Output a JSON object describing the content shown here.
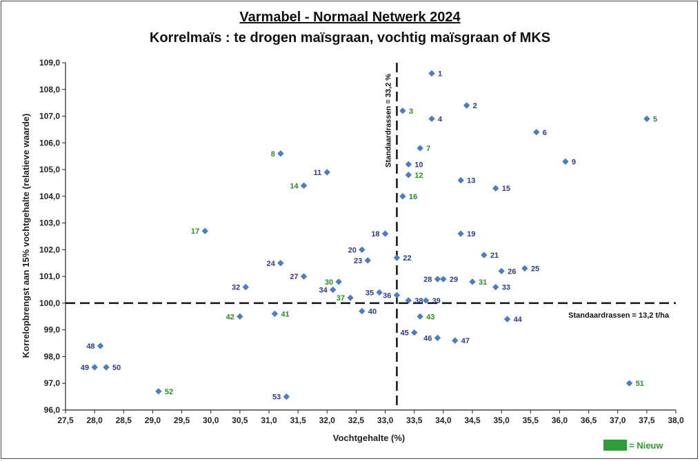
{
  "title": "Varmabel - Normaal Netwerk 2024",
  "subtitle": "Korrelmaïs : te drogen maïsgraan, vochtig maïsgraan of MKS",
  "legend": {
    "label": "= Nieuw",
    "color": "#2e9e3a"
  },
  "colors": {
    "point": "#4a7fc8",
    "label_old": "#2b3a8a",
    "label_new": "#2a8a2a"
  },
  "chart_data": {
    "type": "scatter",
    "xlabel": "Vochtgehalte (%)",
    "ylabel": "Korrelopbrengst aan 15% vochtgehalte (relatieve waarde)",
    "xlim": [
      27.5,
      38.0
    ],
    "ylim": [
      96.0,
      109.0
    ],
    "xticks": [
      "27,5",
      "28,0",
      "28,5",
      "29,0",
      "29,5",
      "30,0",
      "30,5",
      "31,0",
      "31,5",
      "32,0",
      "32,5",
      "33,0",
      "33,5",
      "34,0",
      "34,5",
      "35,0",
      "35,5",
      "36,0",
      "36,5",
      "37,0",
      "37,5",
      "38,0"
    ],
    "yticks": [
      "96,0",
      "97,0",
      "98,0",
      "99,0",
      "100,0",
      "101,0",
      "102,0",
      "103,0",
      "104,0",
      "105,0",
      "106,0",
      "107,0",
      "108,0",
      "109,0"
    ],
    "reference_lines": [
      {
        "orientation": "vertical",
        "value": 33.2,
        "label": "Standaardrassen = 33,2 %"
      },
      {
        "orientation": "horizontal",
        "value": 100.0,
        "label": "Standaardrassen = 13,2 t/ha"
      }
    ],
    "points": [
      {
        "label": "1",
        "x": 33.8,
        "y": 108.6,
        "new": false
      },
      {
        "label": "2",
        "x": 34.4,
        "y": 107.4,
        "new": false
      },
      {
        "label": "3",
        "x": 33.3,
        "y": 107.2,
        "new": true
      },
      {
        "label": "4",
        "x": 33.8,
        "y": 106.9,
        "new": false
      },
      {
        "label": "5",
        "x": 37.5,
        "y": 106.9,
        "new": true
      },
      {
        "label": "6",
        "x": 35.6,
        "y": 106.4,
        "new": false
      },
      {
        "label": "7",
        "x": 33.6,
        "y": 105.8,
        "new": true
      },
      {
        "label": "8",
        "x": 31.2,
        "y": 105.6,
        "new": true
      },
      {
        "label": "9",
        "x": 36.1,
        "y": 105.3,
        "new": false
      },
      {
        "label": "10",
        "x": 33.4,
        "y": 105.2,
        "new": false
      },
      {
        "label": "11",
        "x": 32.0,
        "y": 104.9,
        "new": false
      },
      {
        "label": "12",
        "x": 33.4,
        "y": 104.8,
        "new": true
      },
      {
        "label": "13",
        "x": 34.3,
        "y": 104.6,
        "new": false
      },
      {
        "label": "14",
        "x": 31.6,
        "y": 104.4,
        "new": true
      },
      {
        "label": "15",
        "x": 34.9,
        "y": 104.3,
        "new": false
      },
      {
        "label": "16",
        "x": 33.3,
        "y": 104.0,
        "new": true
      },
      {
        "label": "17",
        "x": 29.9,
        "y": 102.7,
        "new": true
      },
      {
        "label": "18",
        "x": 33.0,
        "y": 102.6,
        "new": false
      },
      {
        "label": "19",
        "x": 34.3,
        "y": 102.6,
        "new": false
      },
      {
        "label": "20",
        "x": 32.6,
        "y": 102.0,
        "new": false
      },
      {
        "label": "21",
        "x": 34.7,
        "y": 101.8,
        "new": false
      },
      {
        "label": "22",
        "x": 33.2,
        "y": 101.7,
        "new": false
      },
      {
        "label": "23",
        "x": 32.7,
        "y": 101.6,
        "new": false
      },
      {
        "label": "24",
        "x": 31.2,
        "y": 101.5,
        "new": false
      },
      {
        "label": "25",
        "x": 35.4,
        "y": 101.3,
        "new": false
      },
      {
        "label": "26",
        "x": 35.0,
        "y": 101.2,
        "new": false
      },
      {
        "label": "27",
        "x": 31.6,
        "y": 101.0,
        "new": false
      },
      {
        "label": "28",
        "x": 33.9,
        "y": 100.9,
        "new": false
      },
      {
        "label": "29",
        "x": 34.0,
        "y": 100.9,
        "new": false
      },
      {
        "label": "30",
        "x": 32.2,
        "y": 100.8,
        "new": true
      },
      {
        "label": "31",
        "x": 34.5,
        "y": 100.8,
        "new": true
      },
      {
        "label": "32",
        "x": 30.6,
        "y": 100.6,
        "new": false
      },
      {
        "label": "33",
        "x": 34.9,
        "y": 100.6,
        "new": false
      },
      {
        "label": "34",
        "x": 32.1,
        "y": 100.5,
        "new": false
      },
      {
        "label": "35",
        "x": 32.9,
        "y": 100.4,
        "new": false
      },
      {
        "label": "36",
        "x": 33.2,
        "y": 100.3,
        "new": false
      },
      {
        "label": "37",
        "x": 32.4,
        "y": 100.2,
        "new": true
      },
      {
        "label": "38",
        "x": 33.4,
        "y": 100.1,
        "new": false
      },
      {
        "label": "39",
        "x": 33.7,
        "y": 100.1,
        "new": false
      },
      {
        "label": "40",
        "x": 32.6,
        "y": 99.7,
        "new": false
      },
      {
        "label": "41",
        "x": 31.1,
        "y": 99.6,
        "new": true
      },
      {
        "label": "42",
        "x": 30.5,
        "y": 99.5,
        "new": true
      },
      {
        "label": "43",
        "x": 33.6,
        "y": 99.5,
        "new": true
      },
      {
        "label": "44",
        "x": 35.1,
        "y": 99.4,
        "new": false
      },
      {
        "label": "45",
        "x": 33.5,
        "y": 98.9,
        "new": false
      },
      {
        "label": "46",
        "x": 33.9,
        "y": 98.7,
        "new": false
      },
      {
        "label": "47",
        "x": 34.2,
        "y": 98.6,
        "new": false
      },
      {
        "label": "48",
        "x": 28.1,
        "y": 98.4,
        "new": false
      },
      {
        "label": "49",
        "x": 28.0,
        "y": 97.6,
        "new": false
      },
      {
        "label": "50",
        "x": 28.2,
        "y": 97.6,
        "new": false
      },
      {
        "label": "51",
        "x": 37.2,
        "y": 97.0,
        "new": true
      },
      {
        "label": "52",
        "x": 29.1,
        "y": 96.7,
        "new": true
      },
      {
        "label": "53",
        "x": 31.3,
        "y": 96.5,
        "new": false
      }
    ]
  }
}
